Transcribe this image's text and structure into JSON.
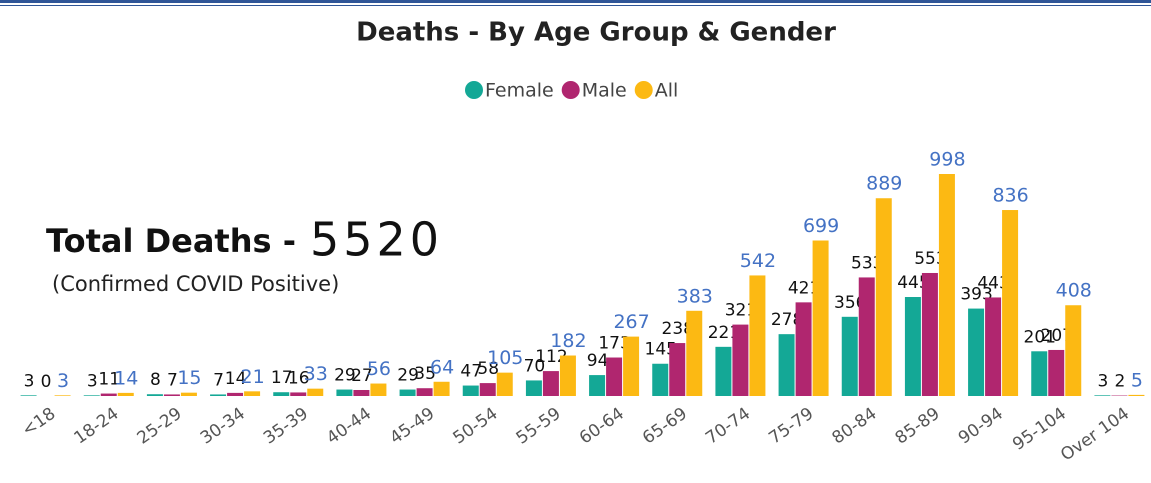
{
  "chart_data": {
    "type": "bar",
    "title": "Deaths - By Age Group & Gender",
    "annotations": {
      "label": "Total Deaths -",
      "total": "5520",
      "note": "(Confirmed COVID Positive)"
    },
    "categories": [
      "<18",
      "18-24",
      "25-29",
      "30-34",
      "35-39",
      "40-44",
      "45-49",
      "50-54",
      "55-59",
      "60-64",
      "65-69",
      "70-74",
      "75-79",
      "80-84",
      "85-89",
      "90-94",
      "95-104",
      "Over 104"
    ],
    "series": [
      {
        "name": "Female",
        "color": "#14a896",
        "values": [
          3,
          3,
          8,
          7,
          17,
          29,
          29,
          47,
          70,
          94,
          145,
          221,
          278,
          356,
          445,
          393,
          201,
          3
        ]
      },
      {
        "name": "Male",
        "color": "#b0266f",
        "values": [
          0,
          11,
          7,
          14,
          16,
          27,
          35,
          58,
          112,
          173,
          238,
          321,
          421,
          533,
          553,
          443,
          207,
          2
        ]
      },
      {
        "name": "All",
        "color": "#fcb913",
        "values": [
          3,
          14,
          15,
          21,
          33,
          56,
          64,
          105,
          182,
          267,
          383,
          542,
          699,
          889,
          998,
          836,
          408,
          5
        ]
      }
    ]
  }
}
